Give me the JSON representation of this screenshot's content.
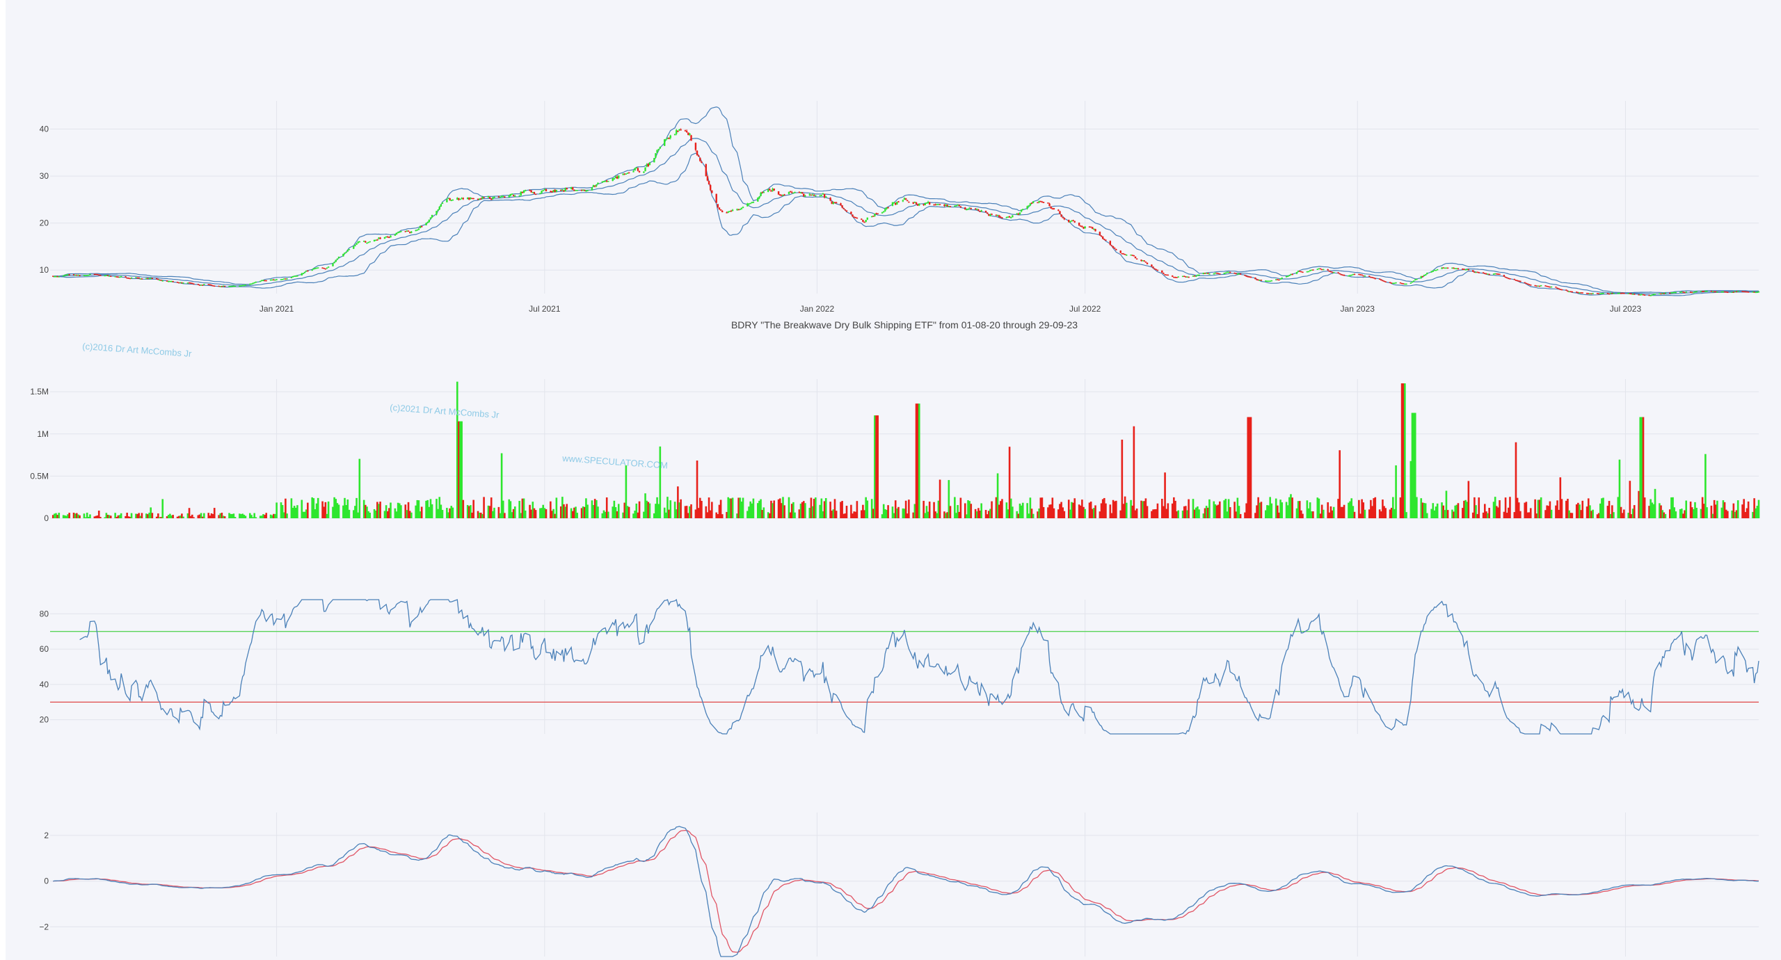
{
  "chart_data": [
    {
      "type": "candlestick",
      "subtitle": "BDRY \"The Breakwave Dry Bulk Shipping ETF\" from 01-08-20 through 29-09-23",
      "x_range": [
        "2020-08-01",
        "2023-09-29"
      ],
      "x_ticks": [
        {
          "date": "2021-01-01",
          "label": "Jan 2021"
        },
        {
          "date": "2021-07-01",
          "label": "Jul 2021"
        },
        {
          "date": "2022-01-01",
          "label": "Jan 2022"
        },
        {
          "date": "2022-07-01",
          "label": "Jul 2022"
        },
        {
          "date": "2023-01-01",
          "label": "Jan 2023"
        },
        {
          "date": "2023-07-01",
          "label": "Jul 2023"
        }
      ],
      "y_ticks": [
        10,
        20,
        30,
        40
      ],
      "ylim": [
        5,
        46
      ],
      "price_path": [
        [
          "2020-08-01",
          8.8
        ],
        [
          "2020-09-01",
          9.0
        ],
        [
          "2020-10-01",
          8.2
        ],
        [
          "2020-11-01",
          7.2
        ],
        [
          "2020-12-01",
          6.8
        ],
        [
          "2021-01-01",
          8.0
        ],
        [
          "2021-02-01",
          10.5
        ],
        [
          "2021-03-01",
          16.0
        ],
        [
          "2021-04-01",
          18.5
        ],
        [
          "2021-05-01",
          25.0
        ],
        [
          "2021-06-01",
          26.0
        ],
        [
          "2021-07-01",
          27.0
        ],
        [
          "2021-08-01",
          27.5
        ],
        [
          "2021-09-01",
          31.0
        ],
        [
          "2021-10-01",
          40.0
        ],
        [
          "2021-11-01",
          22.0
        ],
        [
          "2021-12-01",
          26.0
        ],
        [
          "2022-01-01",
          26.0
        ],
        [
          "2022-02-01",
          21.0
        ],
        [
          "2022-03-01",
          25.0
        ],
        [
          "2022-04-01",
          24.0
        ],
        [
          "2022-05-01",
          21.0
        ],
        [
          "2022-06-01",
          24.0
        ],
        [
          "2022-07-01",
          19.0
        ],
        [
          "2022-08-01",
          13.0
        ],
        [
          "2022-09-01",
          8.5
        ],
        [
          "2022-10-01",
          9.5
        ],
        [
          "2022-11-01",
          8.0
        ],
        [
          "2022-12-01",
          10.0
        ],
        [
          "2023-01-01",
          9.0
        ],
        [
          "2023-02-01",
          7.0
        ],
        [
          "2023-03-01",
          10.5
        ],
        [
          "2023-04-01",
          9.0
        ],
        [
          "2023-05-01",
          7.0
        ],
        [
          "2023-06-01",
          5.2
        ],
        [
          "2023-07-01",
          5.0
        ],
        [
          "2023-09-29",
          5.5
        ]
      ],
      "bollinger": {
        "window": 20,
        "num_std": 2,
        "color": "#4a80b8"
      },
      "colors": {
        "up": "#2ee62e",
        "down": "#e8201a"
      },
      "watermark": "(c)2016 Dr Art McCombs Jr"
    },
    {
      "type": "bar",
      "name": "volume",
      "y_ticks": [
        {
          "value": 0,
          "label": "0"
        },
        {
          "value": 500000,
          "label": "0.5M"
        },
        {
          "value": 1000000,
          "label": "1M"
        },
        {
          "value": 1500000,
          "label": "1.5M"
        }
      ],
      "ylim": [
        0,
        1650000
      ],
      "volume_peaks": [
        [
          "2021-05-03",
          1620000
        ],
        [
          "2021-05-05",
          1150000
        ],
        [
          "2022-02-10",
          1220000
        ],
        [
          "2022-03-10",
          1360000
        ],
        [
          "2022-10-20",
          1200000
        ],
        [
          "2023-02-01",
          1600000
        ],
        [
          "2023-02-08",
          1250000
        ],
        [
          "2023-07-12",
          1200000
        ]
      ],
      "colors": {
        "up": "#2ee62e",
        "down": "#e8201a"
      },
      "watermarks": [
        "(c)2021 Dr Art McCombs Jr",
        "www.SPECULATOR.COM"
      ]
    },
    {
      "type": "line",
      "name": "RSI",
      "y_ticks": [
        20,
        40,
        60,
        80
      ],
      "ylim": [
        12,
        88
      ],
      "overbought": 70,
      "oversold": 30,
      "colors": {
        "line": "#4a80b8",
        "overbought": "#5ad45a",
        "oversold": "#e05555"
      }
    },
    {
      "type": "line",
      "name": "MACD",
      "y_ticks": [
        {
          "value": -2,
          "label": "−2"
        },
        {
          "value": 0,
          "label": "0"
        },
        {
          "value": 2,
          "label": "2"
        }
      ],
      "ylim": [
        -3.3,
        3.0
      ],
      "colors": {
        "macd": "#4a80b8",
        "signal": "#e05565"
      }
    }
  ]
}
